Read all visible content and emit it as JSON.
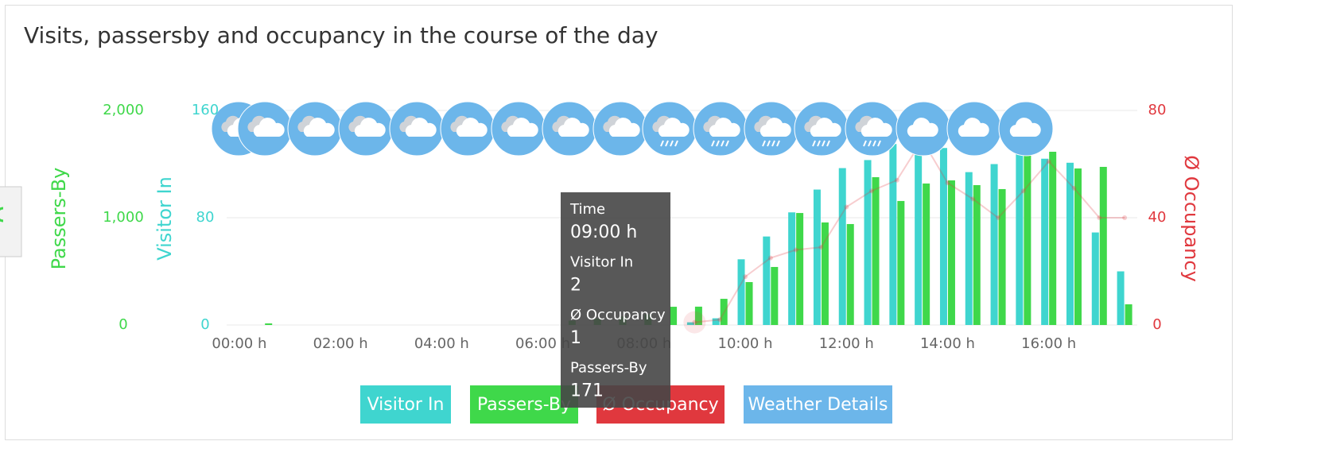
{
  "chart_data": {
    "type": "bar",
    "title": "Visits, passersby and occupancy in the course of the day",
    "x": [
      0,
      0.5,
      1,
      1.5,
      2,
      2.5,
      3,
      3.5,
      4,
      4.5,
      5,
      5.5,
      6,
      6.5,
      7,
      7.5,
      8,
      8.5,
      9,
      9.5,
      10,
      10.5,
      11,
      11.5,
      12,
      12.5,
      13,
      13.5,
      14,
      14.5,
      15,
      15.5,
      16,
      16.5,
      17,
      17.5
    ],
    "xlim": [
      -0.25,
      17.75
    ],
    "xticks": [
      {
        "value": 0,
        "label": "00:00 h"
      },
      {
        "value": 2,
        "label": "02:00 h"
      },
      {
        "value": 4,
        "label": "04:00 h"
      },
      {
        "value": 6,
        "label": "06:00 h"
      },
      {
        "value": 8,
        "label": "08:00 h"
      },
      {
        "value": 10,
        "label": "10:00 h"
      },
      {
        "value": 12,
        "label": "12:00 h"
      },
      {
        "value": 14,
        "label": "14:00 h"
      },
      {
        "value": 16,
        "label": "16:00 h"
      }
    ],
    "ylabel": "Visitor In",
    "ylim": [
      0,
      160
    ],
    "yticks": [
      0,
      80,
      160
    ],
    "y2label": "Passers-By",
    "y2lim": [
      0,
      2000
    ],
    "y2ticks": [
      0,
      {
        "value": 1000,
        "label": "1,000"
      },
      {
        "value": 2000,
        "label": "2,000"
      }
    ],
    "y3label": "Ø Occupancy",
    "y3lim": [
      0,
      80
    ],
    "y3ticks": [
      0,
      40,
      80
    ],
    "grid": true,
    "series": [
      {
        "name": "Visitor In",
        "type": "bar",
        "axis": "y",
        "color": "#3fd5cf",
        "values": [
          0,
          0,
          0,
          0,
          0,
          0,
          0,
          0,
          0,
          0,
          0,
          0,
          0,
          0,
          0,
          0,
          0,
          0,
          2,
          5,
          49,
          66,
          84,
          101,
          117,
          123,
          135,
          138,
          132,
          114,
          120,
          133,
          124,
          121,
          69,
          40
        ]
      },
      {
        "name": "Passers-By",
        "type": "bar",
        "axis": "y2",
        "color": "#3fd84a",
        "values": [
          0,
          15,
          0,
          0,
          0,
          0,
          0,
          0,
          0,
          0,
          0,
          0,
          0,
          40,
          60,
          80,
          100,
          170,
          171,
          244,
          400,
          541,
          1044,
          956,
          941,
          1378,
          1156,
          1319,
          1348,
          1304,
          1267,
          1622,
          1615,
          1459,
          1474,
          193
        ]
      },
      {
        "name": "Ø Occupancy",
        "type": "line",
        "axis": "y3",
        "color": "#e0383e",
        "values": [
          null,
          null,
          null,
          null,
          null,
          null,
          null,
          null,
          null,
          null,
          null,
          null,
          null,
          null,
          null,
          null,
          null,
          null,
          1,
          2,
          18,
          25,
          28,
          29,
          44,
          50,
          54,
          69,
          53,
          47,
          40,
          50,
          61,
          51,
          40,
          40
        ]
      }
    ],
    "extra_button": "Weather Details",
    "extra_color": "#6cb6ea",
    "tooltip": [
      {
        "label": "Time",
        "value": "09:00 h"
      },
      {
        "label": "Visitor In",
        "value": 2
      },
      {
        "label": "Ø Occupancy",
        "value": 1
      },
      {
        "label": "Passers-By",
        "value": 171
      }
    ]
  }
}
